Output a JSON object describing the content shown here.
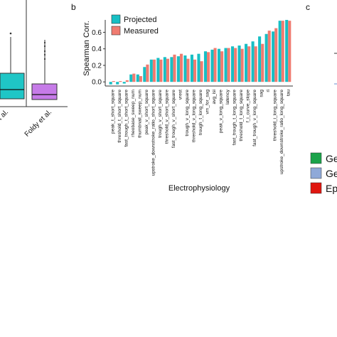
{
  "panels": {
    "b": "b",
    "c": "c"
  },
  "left_panel": {
    "x_labels": [
      "et al.",
      "Foldy et al."
    ],
    "colors": [
      "#1fc6c6",
      "#c67be8"
    ]
  },
  "right_legend": {
    "items": [
      {
        "text": "Ge",
        "color": "#1aa34a"
      },
      {
        "text": "Ge",
        "color": "#8fa9d8"
      },
      {
        "text": "Ep",
        "color": "#e0160f"
      }
    ]
  },
  "chart_data": {
    "type": "bar",
    "xlabel": "Electrophysiology",
    "ylabel": "Spearman Corr.",
    "ylim": [
      -0.05,
      0.75
    ],
    "yticks": [
      0.0,
      0.2,
      0.4,
      0.6
    ],
    "legend_position": "top-left",
    "categories": [
      "peak_t_short_square",
      "threshold_t_short_square",
      "fast_trough_t_short_square",
      "rheobase_sweep_num",
      "thumbnail_sweep_num",
      "peak_v_short_square",
      "upstroke_downstroke_ratio_short_square",
      "trough_v_short_square",
      "threshold_v_short_square",
      "fast_trough_v_short_square",
      "vrest",
      "trough_v_long_square",
      "threshold_v_long_square",
      "trough_t_long_square",
      "vm_for_sag",
      "avg_isi",
      "peak_v_long_square",
      "latency",
      "fast_trough_t_long_square",
      "threshold_t_long_square",
      "f_i_curve_slope",
      "fast_trough_v_long_square",
      "sag",
      "ri",
      "threshold_i_long_square",
      "upstroke_downstroke_ratio_long_square",
      "tau"
    ],
    "series": [
      {
        "name": "Projected",
        "color": "#17bfc4",
        "values": [
          -0.03,
          -0.03,
          -0.02,
          0.09,
          0.09,
          0.18,
          0.27,
          0.29,
          0.3,
          0.3,
          0.31,
          0.32,
          0.33,
          0.34,
          0.37,
          0.39,
          0.4,
          0.41,
          0.43,
          0.44,
          0.46,
          0.49,
          0.55,
          0.58,
          0.61,
          0.74,
          0.75
        ]
      },
      {
        "name": "Measured",
        "color": "#f07b70",
        "values": [
          0.01,
          0.01,
          0.02,
          0.1,
          0.07,
          0.21,
          0.27,
          0.27,
          0.28,
          0.33,
          0.34,
          0.28,
          0.27,
          0.25,
          0.36,
          0.41,
          0.37,
          0.41,
          0.41,
          0.4,
          0.43,
          0.43,
          0.46,
          0.62,
          0.65,
          0.74,
          0.74
        ]
      }
    ]
  }
}
